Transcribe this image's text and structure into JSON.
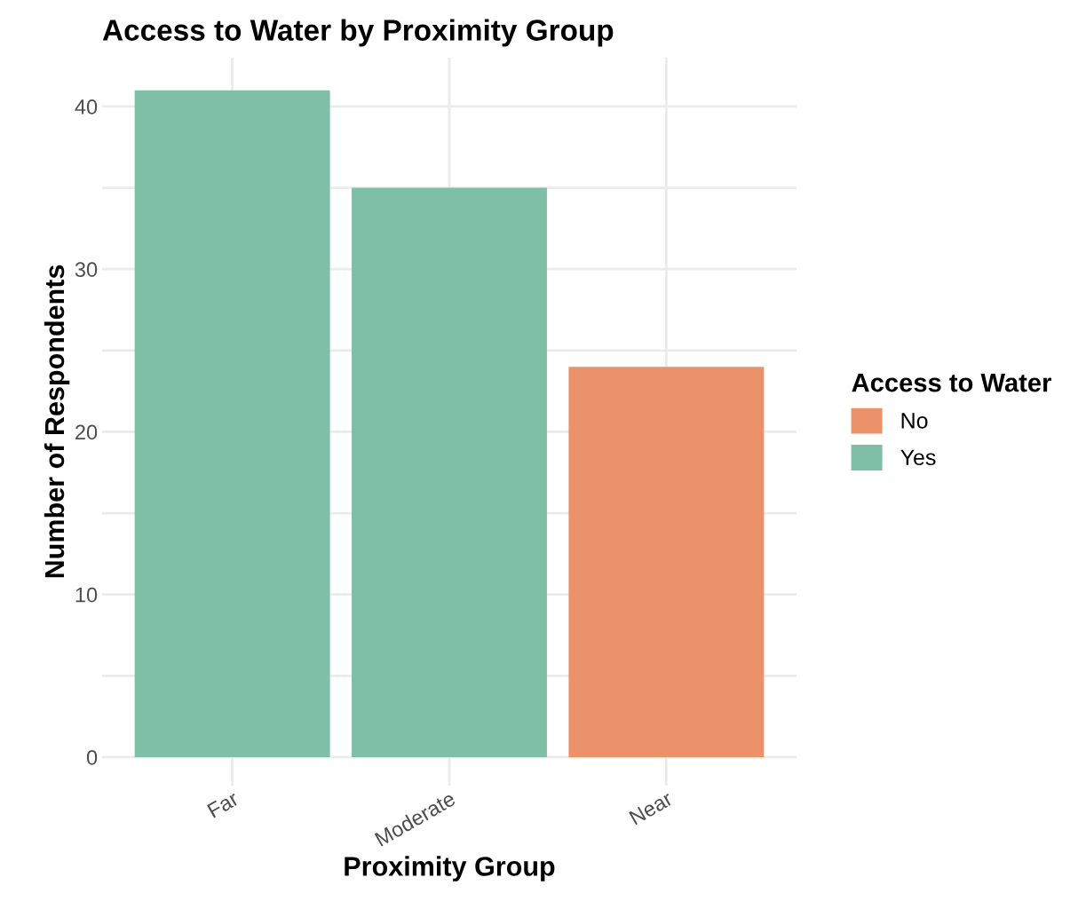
{
  "chart_data": {
    "type": "bar",
    "title": "Access to Water by Proximity Group",
    "xlabel": "Proximity Group",
    "ylabel": "Number of Respondents",
    "legend_title": "Access to Water",
    "categories": [
      "Far",
      "Moderate",
      "Near"
    ],
    "series": [
      {
        "name": "No",
        "color": "#eb926b",
        "values": [
          null,
          null,
          24
        ]
      },
      {
        "name": "Yes",
        "color": "#7fbfa7",
        "values": [
          41,
          35,
          null
        ]
      }
    ],
    "ylim": [
      -1.75,
      43
    ],
    "yticks": [
      0,
      {
        "value": 5,
        "label": null
      },
      10,
      {
        "value": 15,
        "label": null
      },
      20,
      {
        "value": 25,
        "label": null
      },
      30,
      {
        "value": 35,
        "label": null
      },
      40
    ],
    "grid": true,
    "legend": "right"
  }
}
